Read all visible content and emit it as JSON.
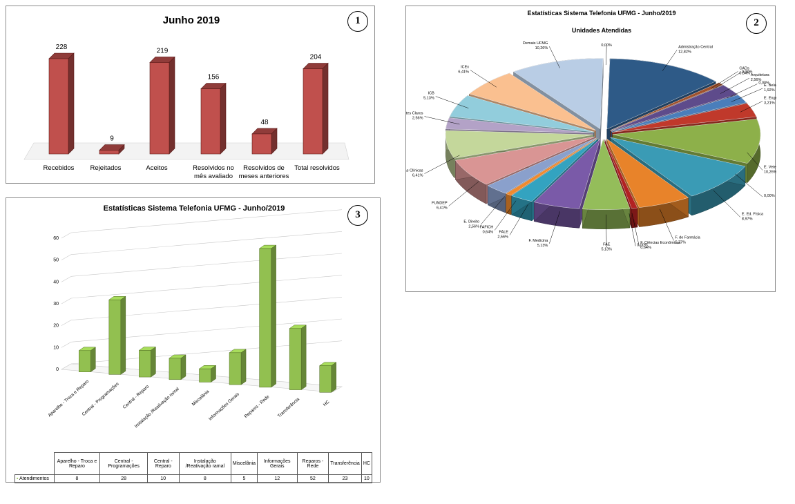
{
  "panels": [
    {
      "number": "1",
      "chart_data": {
        "type": "bar",
        "title": "Junho 2019",
        "categories": [
          "Recebidos",
          "Rejeitados",
          "Aceitos",
          "Resolvidos no mês avaliado",
          "Resolvidos de meses anteriores",
          "Total resolvidos"
        ],
        "values": [
          228,
          9,
          219,
          156,
          48,
          204
        ],
        "ylim": [
          0,
          260
        ],
        "grid": false,
        "legend": "none",
        "color": "#c0504d"
      }
    },
    {
      "number": "2",
      "chart_data": {
        "type": "pie",
        "title": "Estatísticas Sistema Telefonia UFMG - Junho/2019",
        "subtitle": "Unidades Atendidas",
        "slices": [
          {
            "label": "Admistração Central",
            "value_label": "12,82%",
            "value": 12.82,
            "color": "#2e5a87"
          },
          {
            "label": "CADs",
            "value_label": "0,64%",
            "value": 0.64,
            "color": "#a0522d"
          },
          {
            "label": "",
            "value_label": "0,00%",
            "value": 0.0,
            "color": "#6a5acd"
          },
          {
            "label": "Arquitetura",
            "value_label": "2,56%",
            "value": 2.56,
            "color": "#5e4b8b"
          },
          {
            "label": "",
            "value_label": "0,00%",
            "value": 0.0,
            "color": "#4682b4"
          },
          {
            "label": "E. Belas Artes",
            "value_label": "1,92%",
            "value": 1.92,
            "color": "#4a7ebb"
          },
          {
            "label": "E. Engenharia",
            "value_label": "3,21%",
            "value": 3.21,
            "color": "#c0392b"
          },
          {
            "label": "E. Veterinária",
            "value_label": "10,26%",
            "value": 10.26,
            "color": "#8db04a"
          },
          {
            "label": "",
            "value_label": "0,00%",
            "value": 0.0,
            "color": "#7b5ea7"
          },
          {
            "label": "E. Ed. Física",
            "value_label": "8,97%",
            "value": 8.97,
            "color": "#3a9bb5"
          },
          {
            "label": "F. de Farmácia",
            "value_label": "5,77%",
            "value": 5.77,
            "color": "#e8832a"
          },
          {
            "label": "F. Ciências Econômicas",
            "value_label": "0,64%",
            "value": 0.64,
            "color": "#b22222"
          },
          {
            "label": "",
            "value_label": "0,00%",
            "value": 0.0,
            "color": "#9370db"
          },
          {
            "label": "FAE",
            "value_label": "5,13%",
            "value": 5.13,
            "color": "#94bd5a"
          },
          {
            "label": "F. Medicina",
            "value_label": "5,13%",
            "value": 5.13,
            "color": "#7a5aa8"
          },
          {
            "label": "FALE",
            "value_label": "2,56%",
            "value": 2.56,
            "color": "#33a3c0"
          },
          {
            "label": "FAFICH",
            "value_label": "0,64%",
            "value": 0.64,
            "color": "#f08a2e"
          },
          {
            "label": "E. Direito",
            "value_label": "2,56%",
            "value": 2.56,
            "color": "#8aa0cc"
          },
          {
            "label": "FUNDEP",
            "value_label": "6,41%",
            "value": 6.41,
            "color": "#d99594"
          },
          {
            "label": "Hospital das Clínicas",
            "value_label": "6,41%",
            "value": 6.41,
            "color": "#c4d79b"
          },
          {
            "label": "ICA Montes Claros",
            "value_label": "2,56%",
            "value": 2.56,
            "color": "#b3a2c7"
          },
          {
            "label": "ICB",
            "value_label": "5,13%",
            "value": 5.13,
            "color": "#92cddc"
          },
          {
            "label": "ICEx",
            "value_label": "6,41%",
            "value": 6.41,
            "color": "#fac090"
          },
          {
            "label": "Demais UFMG",
            "value_label": "10,26%",
            "value": 10.26,
            "color": "#b9cde5"
          },
          {
            "label": "",
            "value_label": "0,00%",
            "value": 0.0,
            "color": "#ffffff"
          }
        ],
        "legend": "none"
      }
    },
    {
      "number": "3",
      "chart_data": {
        "type": "bar",
        "title": "Estatísticas Sistema Telefonia UFMG - Junho/2019",
        "categories": [
          "Aparelho - Troca e Reparo",
          "Central - Programações",
          "Central - Reparo",
          "Instalação /Reativação ramal",
          "Miscelânia",
          "Informações Gerais",
          "Reparos - Rede",
          "Transferência",
          "HC"
        ],
        "table_headers": [
          "Aparelho - Troca e Reparo",
          "Central - Programações",
          "Central - Reparo",
          "Instalação /Reativação ramal",
          "Miscelânia",
          "Informações Gerais",
          "Reparos - Rede",
          "Transferência",
          "HC"
        ],
        "series": [
          {
            "name": "Atendimentos",
            "values": [
              8,
              28,
              10,
              8,
              5,
              12,
              52,
              23,
              10
            ]
          }
        ],
        "yticks": [
          "0",
          "10",
          "20",
          "30",
          "40",
          "50",
          "60"
        ],
        "ylim": [
          0,
          60
        ],
        "grid": true,
        "legend": "data-table",
        "color": "#92c050"
      }
    }
  ]
}
